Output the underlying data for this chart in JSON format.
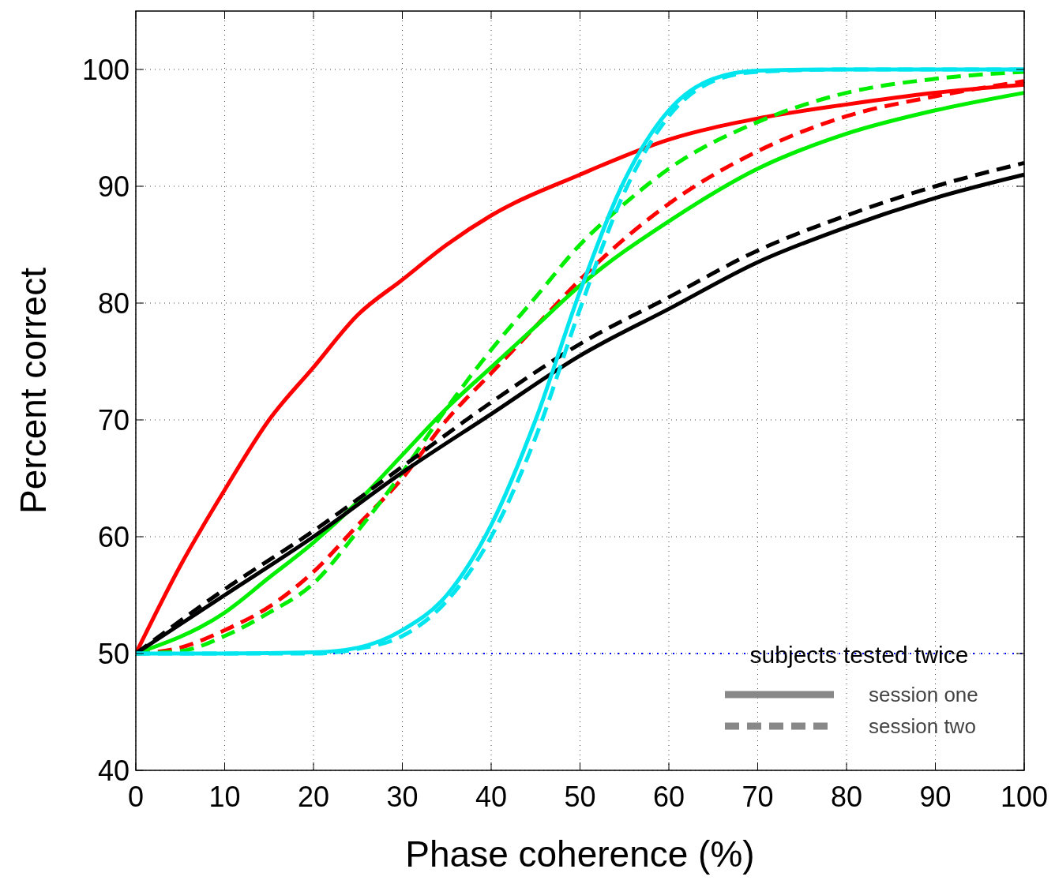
{
  "chart_data": {
    "type": "line",
    "xlabel": "Phase coherence (%)",
    "ylabel": "Percent correct",
    "xlim": [
      0,
      100
    ],
    "ylim": [
      40,
      105
    ],
    "xticks": [
      0,
      10,
      20,
      30,
      40,
      50,
      60,
      70,
      80,
      90,
      100
    ],
    "yticks": [
      40,
      50,
      60,
      70,
      80,
      90,
      100
    ],
    "grid": true,
    "legend_title": "subjects tested twice",
    "annotations": [
      "session one",
      "session two"
    ],
    "ref_lines": [
      {
        "axis": "y",
        "value": 50,
        "color": "#0000ff",
        "line_style": "dotted"
      }
    ],
    "series": [
      {
        "color": "#ff0000",
        "line_style": "solid",
        "x": [
          0,
          5,
          10,
          15,
          20,
          25,
          30,
          35,
          40,
          50,
          60,
          70,
          80,
          90,
          100
        ],
        "values": [
          50,
          57.5,
          64,
          70,
          74.5,
          79,
          82,
          85,
          87.5,
          91,
          94,
          95.8,
          97,
          98,
          98.7
        ]
      },
      {
        "color": "#ff0000",
        "line_style": "dashed",
        "x": [
          0,
          5,
          10,
          15,
          20,
          25,
          30,
          35,
          40,
          45,
          50,
          55,
          60,
          70,
          80,
          90,
          100
        ],
        "values": [
          50,
          50.5,
          52,
          54,
          57,
          61,
          65,
          70,
          74,
          78,
          82,
          85.5,
          88.5,
          93,
          96,
          97.7,
          99
        ]
      },
      {
        "color": "#00ee00",
        "line_style": "solid",
        "x": [
          0,
          10,
          15,
          20,
          25,
          30,
          35,
          40,
          45,
          50,
          60,
          70,
          80,
          90,
          100
        ],
        "values": [
          50,
          53.5,
          56.5,
          59.5,
          63,
          67,
          71,
          74.5,
          78,
          81.5,
          87,
          91.5,
          94.5,
          96.5,
          98
        ]
      },
      {
        "color": "#00ee00",
        "line_style": "dashed",
        "x": [
          0,
          5,
          10,
          15,
          20,
          25,
          30,
          35,
          40,
          45,
          50,
          55,
          60,
          70,
          80,
          90,
          100
        ],
        "values": [
          50,
          50.2,
          51.5,
          53.5,
          56,
          60.5,
          65.5,
          71,
          76,
          80.5,
          85,
          88.5,
          91.5,
          95.5,
          98,
          99.2,
          99.8
        ]
      },
      {
        "color": "#000000",
        "line_style": "solid",
        "x": [
          0,
          10,
          20,
          30,
          40,
          50,
          60,
          70,
          80,
          90,
          100
        ],
        "values": [
          50,
          55,
          60,
          65.5,
          70.5,
          75.5,
          79.5,
          83.5,
          86.5,
          89,
          91
        ]
      },
      {
        "color": "#000000",
        "line_style": "dashed",
        "x": [
          0,
          10,
          20,
          30,
          40,
          50,
          60,
          70,
          80,
          90,
          100
        ],
        "values": [
          50,
          55.5,
          60.5,
          66,
          71.5,
          76.5,
          80.5,
          84.5,
          87.5,
          90,
          92
        ]
      },
      {
        "color": "#00e5ee",
        "line_style": "solid",
        "x": [
          0,
          10,
          20,
          25,
          30,
          35,
          40,
          45,
          50,
          55,
          60,
          65,
          70,
          80,
          100
        ],
        "values": [
          50,
          50,
          50.1,
          50.5,
          52,
          55,
          61,
          70,
          81,
          90.5,
          96.5,
          99.2,
          99.9,
          100,
          100
        ]
      },
      {
        "color": "#00e5ee",
        "line_style": "dashed",
        "x": [
          0,
          20,
          25,
          30,
          35,
          40,
          45,
          50,
          55,
          60,
          65,
          70,
          80,
          100
        ],
        "values": [
          50,
          50,
          50.4,
          51.5,
          54.5,
          60,
          68.5,
          79.5,
          89.5,
          96,
          99,
          99.8,
          100,
          100
        ]
      }
    ]
  }
}
